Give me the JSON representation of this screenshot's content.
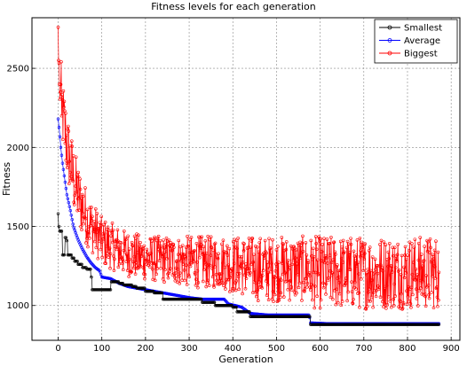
{
  "chart_data": {
    "type": "line",
    "title": "Fitness levels for each generation",
    "xlabel": "Generation",
    "ylabel": "Fitness",
    "xlim": [
      -60,
      920
    ],
    "ylim": [
      780,
      2820
    ],
    "xticks": [
      0,
      100,
      200,
      300,
      400,
      500,
      600,
      700,
      800,
      900
    ],
    "yticks": [
      1000,
      1500,
      2000,
      2500
    ],
    "grid": true,
    "legend_position": "top-right",
    "generations": 872,
    "series": [
      {
        "name": "Smallest",
        "color": "#000000",
        "marker": "circle",
        "points": [
          [
            0,
            1580
          ],
          [
            1,
            1500
          ],
          [
            3,
            1470
          ],
          [
            8,
            1470
          ],
          [
            10,
            1320
          ],
          [
            15,
            1320
          ],
          [
            16,
            1430
          ],
          [
            20,
            1410
          ],
          [
            22,
            1320
          ],
          [
            30,
            1320
          ],
          [
            32,
            1300
          ],
          [
            38,
            1280
          ],
          [
            45,
            1260
          ],
          [
            55,
            1240
          ],
          [
            65,
            1230
          ],
          [
            75,
            1180
          ],
          [
            78,
            1100
          ],
          [
            100,
            1100
          ],
          [
            120,
            1100
          ],
          [
            121,
            1150
          ],
          [
            140,
            1140
          ],
          [
            150,
            1130
          ],
          [
            160,
            1130
          ],
          [
            170,
            1120
          ],
          [
            180,
            1110
          ],
          [
            200,
            1090
          ],
          [
            220,
            1080
          ],
          [
            240,
            1040
          ],
          [
            260,
            1040
          ],
          [
            270,
            1040
          ],
          [
            300,
            1040
          ],
          [
            330,
            1020
          ],
          [
            360,
            1000
          ],
          [
            400,
            990
          ],
          [
            410,
            960
          ],
          [
            430,
            960
          ],
          [
            440,
            930
          ],
          [
            480,
            930
          ],
          [
            500,
            930
          ],
          [
            520,
            930
          ],
          [
            560,
            930
          ],
          [
            575,
            930
          ],
          [
            578,
            880
          ],
          [
            600,
            880
          ],
          [
            700,
            880
          ],
          [
            800,
            880
          ],
          [
            872,
            880
          ]
        ]
      },
      {
        "name": "Average",
        "color": "#0000ff",
        "marker": "circle",
        "points": [
          [
            0,
            2180
          ],
          [
            3,
            2100
          ],
          [
            6,
            2000
          ],
          [
            10,
            1900
          ],
          [
            15,
            1800
          ],
          [
            20,
            1700
          ],
          [
            28,
            1600
          ],
          [
            35,
            1500
          ],
          [
            45,
            1420
          ],
          [
            55,
            1360
          ],
          [
            65,
            1310
          ],
          [
            75,
            1270
          ],
          [
            85,
            1240
          ],
          [
            95,
            1220
          ],
          [
            100,
            1180
          ],
          [
            120,
            1170
          ],
          [
            140,
            1140
          ],
          [
            160,
            1120
          ],
          [
            180,
            1110
          ],
          [
            200,
            1100
          ],
          [
            220,
            1090
          ],
          [
            240,
            1080
          ],
          [
            260,
            1070
          ],
          [
            280,
            1060
          ],
          [
            300,
            1050
          ],
          [
            330,
            1040
          ],
          [
            360,
            1040
          ],
          [
            380,
            1040
          ],
          [
            390,
            1010
          ],
          [
            420,
            990
          ],
          [
            440,
            950
          ],
          [
            480,
            940
          ],
          [
            500,
            940
          ],
          [
            540,
            940
          ],
          [
            575,
            940
          ],
          [
            578,
            890
          ],
          [
            620,
            885
          ],
          [
            700,
            885
          ],
          [
            800,
            885
          ],
          [
            872,
            885
          ]
        ]
      },
      {
        "name": "Biggest",
        "color": "#ff0000",
        "marker": "circle",
        "envelope": [
          [
            0,
            2760
          ],
          [
            10,
            2450
          ],
          [
            25,
            2150
          ],
          [
            45,
            1900
          ],
          [
            70,
            1700
          ],
          [
            100,
            1560
          ],
          [
            150,
            1480
          ],
          [
            200,
            1440
          ],
          [
            300,
            1440
          ],
          [
            400,
            1440
          ],
          [
            500,
            1440
          ],
          [
            600,
            1440
          ],
          [
            700,
            1440
          ],
          [
            800,
            1440
          ],
          [
            872,
            1440
          ]
        ],
        "start_values": [
          [
            0,
            2760
          ],
          [
            1,
            2550
          ],
          [
            3,
            2400
          ],
          [
            5,
            2350
          ],
          [
            8,
            2200
          ]
        ],
        "end_value": [
          872,
          1210
        ]
      }
    ]
  }
}
